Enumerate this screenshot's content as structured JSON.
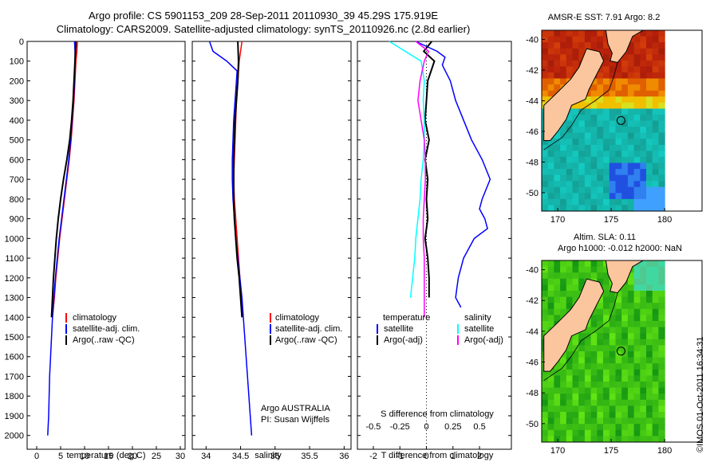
{
  "header": {
    "line1": "Argo profile: CS 5901153_209 28-Sep-2011 20110930_39 45.29S 175.919E",
    "line2": "Climatology: CARS2009. Satellite-adjusted climatology: synTS_20110926.nc (2.8d earlier)"
  },
  "stamp": "©IMOS 01-Oct-2011 16:34:31",
  "colors": {
    "red": "#ff0000",
    "blue": "#0000ff",
    "black": "#000000",
    "cyan": "#00ffff",
    "magenta": "#ff00ff"
  },
  "chart_data": [
    {
      "type": "line",
      "xlabel": "temperature (deg C)",
      "xlim": [
        -2,
        31
      ],
      "ylim": [
        0,
        2070
      ],
      "xticks": [
        0,
        5,
        10,
        15,
        20,
        25,
        30
      ],
      "yticks": [
        0,
        100,
        200,
        300,
        400,
        500,
        600,
        700,
        800,
        900,
        1000,
        1100,
        1200,
        1300,
        1400,
        1500,
        1600,
        1700,
        1800,
        1900,
        2000
      ],
      "legend": [
        "climatology",
        "satellite-adj. clim.",
        "Argo(..raw -QC)"
      ],
      "series": [
        {
          "name": "climatology",
          "color": "#ff0000",
          "width": 1.5,
          "x": [
            8.5,
            8.4,
            8.2,
            8.0,
            7.8,
            7.5,
            7.2,
            6.8,
            6.3,
            5.8,
            5.3,
            4.8,
            4.4,
            4.0,
            3.7,
            3.5,
            3.3
          ],
          "y": [
            0,
            50,
            100,
            200,
            300,
            400,
            500,
            600,
            700,
            800,
            900,
            1000,
            1100,
            1200,
            1300,
            1350,
            1400
          ]
        },
        {
          "name": "satellite-adj. clim.",
          "color": "#0000ff",
          "width": 1.5,
          "x": [
            7.9,
            8.0,
            8.0,
            7.9,
            7.7,
            7.4,
            7.1,
            6.7,
            6.2,
            5.7,
            5.2,
            4.7,
            4.3,
            3.9,
            3.6,
            3.3,
            3.1,
            2.9,
            2.7,
            2.6,
            2.5,
            2.4,
            2.3
          ],
          "y": [
            0,
            50,
            100,
            200,
            300,
            400,
            500,
            600,
            700,
            800,
            900,
            1000,
            1100,
            1200,
            1300,
            1400,
            1500,
            1600,
            1700,
            1800,
            1900,
            1950,
            2000
          ]
        },
        {
          "name": "Argo(..raw -QC)",
          "color": "#000000",
          "width": 2,
          "x": [
            8.2,
            8.1,
            8.0,
            7.8,
            7.6,
            7.3,
            6.9,
            6.3,
            5.6,
            5.0,
            4.5,
            4.1,
            3.8,
            3.5,
            3.3,
            3.1
          ],
          "y": [
            0,
            50,
            100,
            200,
            300,
            400,
            500,
            600,
            700,
            800,
            900,
            1000,
            1100,
            1200,
            1300,
            1400
          ]
        }
      ]
    },
    {
      "type": "line",
      "xlabel": "salinity",
      "xlim": [
        33.8,
        36.1
      ],
      "ylim": [
        0,
        2070
      ],
      "xticks": [
        34,
        34.5,
        35,
        35.5,
        36
      ],
      "legend": [
        "climatology",
        "satellite-adj. clim.",
        "Argo(..raw -QC)"
      ],
      "annotation": [
        "Argo AUSTRALIA",
        "PI: Susan Wijffels"
      ],
      "series": [
        {
          "name": "climatology",
          "color": "#ff0000",
          "width": 1.5,
          "x": [
            34.52,
            34.5,
            34.48,
            34.46,
            34.44,
            34.43,
            34.42,
            34.41,
            34.4,
            34.41,
            34.43,
            34.45,
            34.47,
            34.49,
            34.51,
            34.52
          ],
          "y": [
            0,
            50,
            100,
            200,
            300,
            400,
            500,
            600,
            700,
            800,
            900,
            1000,
            1100,
            1200,
            1300,
            1400
          ]
        },
        {
          "name": "satellite-adj. clim.",
          "color": "#0000ff",
          "width": 1.5,
          "x": [
            34.05,
            34.1,
            34.3,
            34.45,
            34.44,
            34.42,
            34.4,
            34.39,
            34.38,
            34.38,
            34.39,
            34.41,
            34.43,
            34.46,
            34.49,
            34.52,
            34.56,
            34.6,
            34.62,
            34.64,
            34.66
          ],
          "y": [
            0,
            50,
            100,
            150,
            200,
            300,
            400,
            500,
            600,
            700,
            800,
            900,
            1000,
            1100,
            1200,
            1300,
            1500,
            1700,
            1800,
            1900,
            2000
          ]
        },
        {
          "name": "Argo(..raw -QC)",
          "color": "#000000",
          "width": 2,
          "x": [
            34.46,
            34.47,
            34.46,
            34.44,
            34.42,
            34.41,
            34.4,
            34.4,
            34.4,
            34.41,
            34.43,
            34.45,
            34.48,
            34.5,
            34.52
          ],
          "y": [
            0,
            100,
            200,
            300,
            400,
            500,
            600,
            700,
            800,
            900,
            1000,
            1100,
            1200,
            1300,
            1400
          ]
        }
      ]
    },
    {
      "type": "line",
      "xlabel": "T difference from climatology",
      "xlabel_top": "S difference from climatology",
      "xlim": [
        -2.6,
        3.2
      ],
      "ylim": [
        0,
        2070
      ],
      "xticks": [
        -2,
        -1,
        0,
        1,
        2
      ],
      "xticks_top": [
        -0.5,
        -0.25,
        0,
        0.25,
        0.5
      ],
      "legend_left": {
        "title": "temperature",
        "items": [
          "satellite",
          "Argo(-adj)"
        ]
      },
      "legend_right": {
        "title": "salinity",
        "items": [
          "satellite",
          "Argo(-adj)"
        ]
      },
      "series": [
        {
          "name": "T satellite",
          "color": "#0000ff",
          "width": 1.5,
          "x": [
            -0.4,
            0.4,
            0.7,
            0.6,
            0.9,
            1.1,
            1.4,
            1.7,
            2.1,
            2.4,
            2.1,
            2.0,
            2.2,
            2.3,
            1.8,
            1.4,
            1.2,
            1.1,
            1.3
          ],
          "y": [
            0,
            50,
            80,
            120,
            200,
            300,
            400,
            500,
            600,
            700,
            800,
            850,
            900,
            950,
            1000,
            1100,
            1200,
            1300,
            1350
          ]
        },
        {
          "name": "T Argo(-adj)",
          "color": "#000000",
          "width": 2,
          "x": [
            0.2,
            -0.1,
            0.3,
            0.05,
            0,
            -0.05,
            0.1,
            -0.05,
            0.05,
            0,
            0.05,
            -0.05,
            0.05,
            0.1,
            0.1
          ],
          "y": [
            0,
            50,
            100,
            200,
            300,
            400,
            500,
            600,
            700,
            800,
            900,
            1000,
            1100,
            1200,
            1300
          ]
        },
        {
          "name": "S satellite",
          "color": "#00ffff",
          "width": 1.5,
          "x": [
            -0.35,
            -0.2,
            -0.05,
            -0.02,
            -0.03,
            -0.02,
            -0.02,
            -0.03,
            -0.05,
            -0.06,
            -0.08,
            -0.1,
            -0.11,
            -0.13,
            -0.15
          ],
          "y": [
            0,
            50,
            100,
            200,
            300,
            400,
            500,
            600,
            700,
            800,
            900,
            1000,
            1100,
            1200,
            1300
          ]
        },
        {
          "name": "S Argo(-adj)",
          "color": "#ff00ff",
          "width": 1.5,
          "x": [
            -0.1,
            0.02,
            -0.02,
            -0.06,
            -0.08,
            -0.05,
            -0.02,
            -0.01,
            -0.01,
            -0.02,
            -0.03,
            -0.03,
            -0.02,
            -0.02,
            -0.02
          ],
          "y": [
            0,
            50,
            100,
            200,
            300,
            400,
            500,
            600,
            700,
            800,
            900,
            1000,
            1100,
            1200,
            1400
          ]
        }
      ]
    },
    {
      "type": "heatmap",
      "title": "AMSR-E SST: 7.91 Argo: 8.2",
      "xlim": [
        168.5,
        183.5
      ],
      "ylim": [
        -51.2,
        -39.4
      ],
      "xticks": [
        170,
        175,
        180
      ],
      "yticks": [
        -40,
        -42,
        -44,
        -46,
        -48,
        -50
      ],
      "marker": {
        "lon": 175.919,
        "lat": -45.29
      }
    },
    {
      "type": "heatmap",
      "title": "Altim. SLA: 0.11",
      "subtitle": "Argo h1000: -0.012 h2000: NaN",
      "xlim": [
        168.5,
        183.5
      ],
      "ylim": [
        -51.2,
        -39.4
      ],
      "xticks": [
        170,
        175,
        180
      ],
      "yticks": [
        -40,
        -42,
        -44,
        -46,
        -48,
        -50
      ],
      "marker": {
        "lon": 175.919,
        "lat": -45.29
      }
    }
  ]
}
